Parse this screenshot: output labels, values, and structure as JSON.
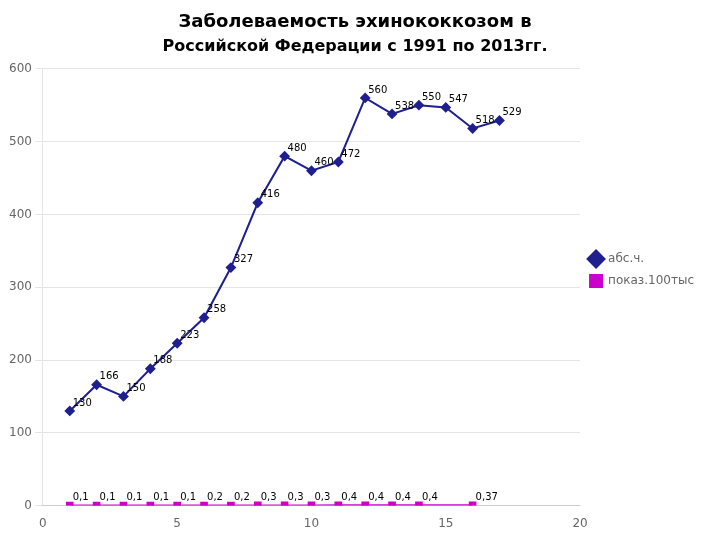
{
  "chart_data": {
    "type": "line",
    "title": "Заболеваемость эхинококкозом в",
    "subtitle": "Российской Федерации с 1991 по 2013гг.",
    "series": [
      {
        "name": "абс.ч.",
        "color": "#1F1F8F",
        "marker": "diamond",
        "x": [
          1,
          2,
          3,
          4,
          5,
          6,
          7,
          8,
          9,
          10,
          11,
          12,
          13,
          14,
          15,
          16,
          17
        ],
        "values": [
          130,
          166,
          150,
          188,
          223,
          258,
          327,
          416,
          480,
          460,
          472,
          560,
          538,
          550,
          547,
          518,
          529
        ]
      },
      {
        "name": "показ.100тыс",
        "color": "#CC00CC",
        "marker": "square",
        "x": [
          1,
          2,
          3,
          4,
          5,
          6,
          7,
          8,
          9,
          10,
          11,
          12,
          13,
          14,
          16
        ],
        "values": [
          0.1,
          0.1,
          0.1,
          0.1,
          0.1,
          0.2,
          0.2,
          0.3,
          0.3,
          0.3,
          0.4,
          0.4,
          0.4,
          0.4,
          0.37
        ],
        "value_labels": [
          "0,1",
          "0,1",
          "0,1",
          "0,1",
          "0,1",
          "0,2",
          "0,2",
          "0,3",
          "0,3",
          "0,3",
          "0,4",
          "0,4",
          "0,4",
          "0,4",
          "0,37"
        ]
      }
    ],
    "xlim": [
      0,
      20
    ],
    "xticks": [
      0,
      5,
      10,
      15,
      20
    ],
    "ylim": [
      0,
      600
    ],
    "yticks": [
      0,
      100,
      200,
      300,
      400,
      500,
      600
    ],
    "grid": "y",
    "legend": "right",
    "data_labels": true
  }
}
